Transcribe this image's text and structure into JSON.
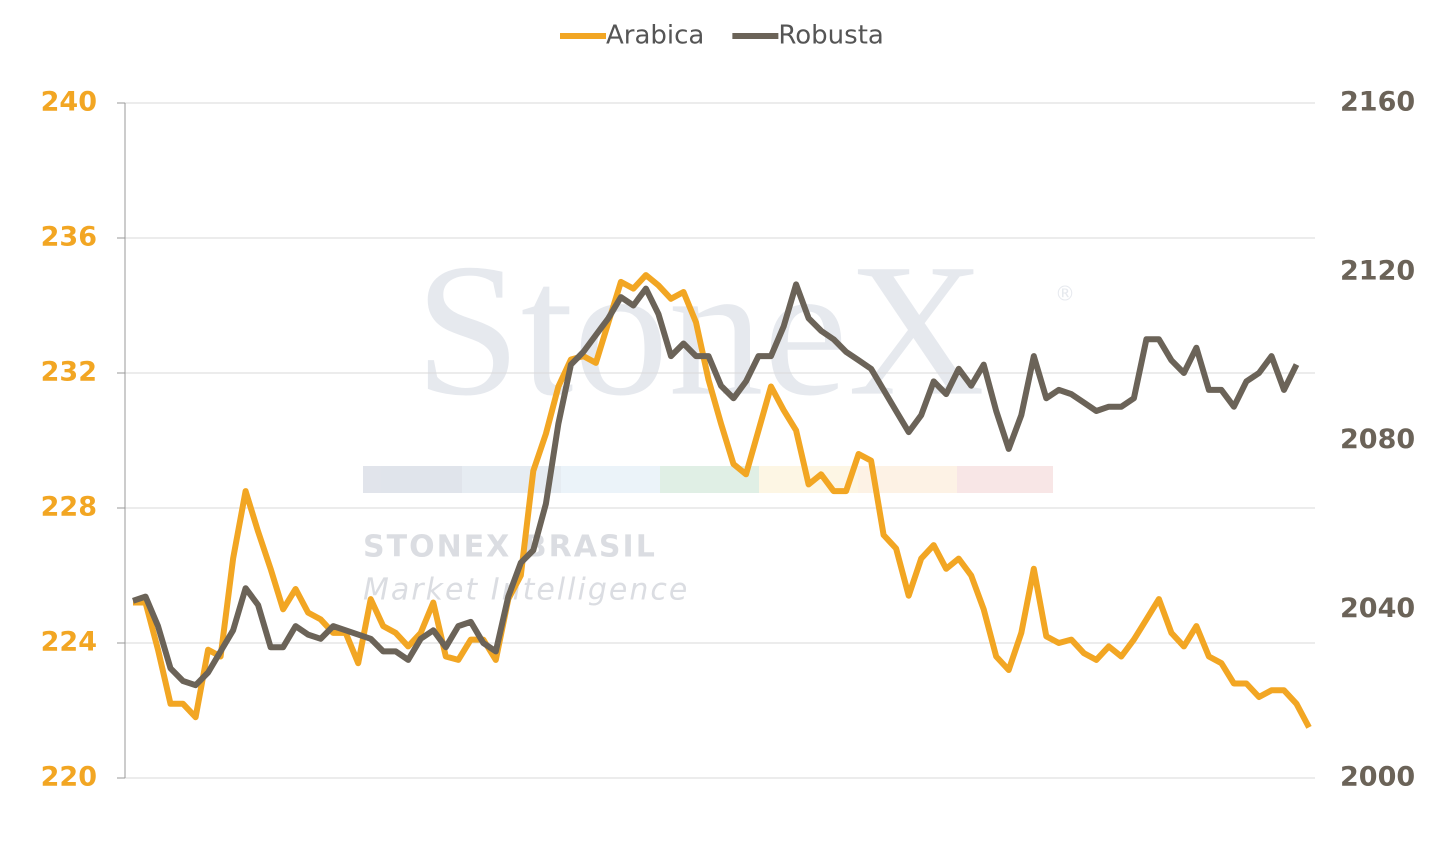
{
  "watermark": {
    "brand": "StoneX",
    "mark": "®",
    "line1": "STONEX BRASIL",
    "line2": "Market Intelligence"
  },
  "chart_data": {
    "type": "line",
    "grid": true,
    "legend": "top",
    "categories": [
      null,
      null,
      null,
      null,
      null,
      null,
      null,
      null,
      null,
      null,
      null,
      null,
      null,
      null,
      null,
      null,
      null,
      null,
      null,
      null,
      null,
      null,
      null,
      null,
      null,
      null,
      null,
      null,
      null,
      null,
      null,
      null,
      null,
      null,
      null,
      null,
      null,
      null,
      null,
      null,
      null,
      null,
      null,
      null,
      null,
      null,
      null,
      null,
      null,
      null,
      null,
      null,
      null,
      null,
      null,
      null,
      null,
      null,
      null,
      null,
      null,
      null,
      null,
      null,
      null,
      null,
      null,
      null,
      null,
      null,
      null,
      null,
      null,
      null,
      null,
      null,
      null,
      null,
      null,
      null,
      null,
      null,
      null,
      null,
      null,
      null,
      null,
      null,
      null,
      null,
      null,
      null,
      null,
      null,
      null
    ],
    "ylim": [
      220,
      240
    ],
    "yticks": [
      220,
      224,
      228,
      232,
      236,
      240
    ],
    "y2lim": [
      2000,
      2160
    ],
    "y2ticks": [
      2000,
      2040,
      2080,
      2120,
      2160
    ],
    "series": [
      {
        "name": "Arabica",
        "color": "#f2a623",
        "values": [
          225.2,
          225.2,
          223.8,
          222.2,
          222.2,
          221.8,
          223.8,
          223.6,
          226.5,
          228.5,
          227.3,
          226.2,
          225.0,
          225.6,
          224.9,
          224.7,
          224.3,
          224.3,
          223.4,
          225.3,
          224.5,
          224.3,
          223.9,
          224.3,
          225.2,
          223.6,
          223.5,
          224.1,
          224.1,
          223.5,
          225.3,
          226.0,
          229.1,
          230.2,
          231.6,
          232.4,
          232.5,
          232.3,
          233.5,
          234.7,
          234.5,
          234.9,
          234.6,
          234.2,
          234.4,
          233.5,
          231.8,
          230.5,
          229.3,
          229.0,
          230.3,
          231.6,
          230.9,
          230.3,
          228.7,
          229.0,
          228.5,
          228.5,
          229.6,
          229.4,
          227.2,
          226.8,
          225.4,
          226.5,
          226.9,
          226.2,
          226.5,
          226.0,
          225.0,
          223.6,
          223.2,
          224.3,
          226.2,
          224.2,
          224.0,
          224.1,
          223.7,
          223.5,
          223.9,
          223.6,
          224.1,
          224.7,
          225.3,
          224.3,
          223.9,
          224.5,
          223.6,
          223.4,
          222.8,
          222.8,
          222.4,
          222.6,
          222.6,
          222.2,
          221.5
        ]
      },
      {
        "name": "Robusta",
        "color": "#6b6358",
        "axis": "y2",
        "values": [
          2042,
          2043,
          2036,
          2026,
          2023,
          2022,
          2025,
          2030,
          2035,
          2045,
          2041,
          2031,
          2031,
          2036,
          2034,
          2033,
          2036,
          2035,
          2034,
          2033,
          2030,
          2030,
          2028,
          2033,
          2035,
          2031,
          2036,
          2037,
          2032,
          2030,
          2043,
          2051,
          2054,
          2065,
          2084,
          2098,
          2101,
          2105,
          2109,
          2114,
          2112,
          2116,
          2110,
          2100,
          2103,
          2100,
          2100,
          2093,
          2090,
          2094,
          2100,
          2100,
          2107,
          2117,
          2109,
          2106,
          2104,
          2101,
          2099,
          2097,
          2092,
          2087,
          2082,
          2086,
          2094,
          2091,
          2097,
          2093,
          2098,
          2087,
          2078,
          2086,
          2100,
          2090,
          2092,
          2091,
          2089,
          2087,
          2088,
          2088,
          2090,
          2104,
          2104,
          2099,
          2096,
          2102,
          2092,
          2092,
          2088,
          2094,
          2096,
          2100,
          2092,
          2098,
          null
        ]
      }
    ]
  }
}
